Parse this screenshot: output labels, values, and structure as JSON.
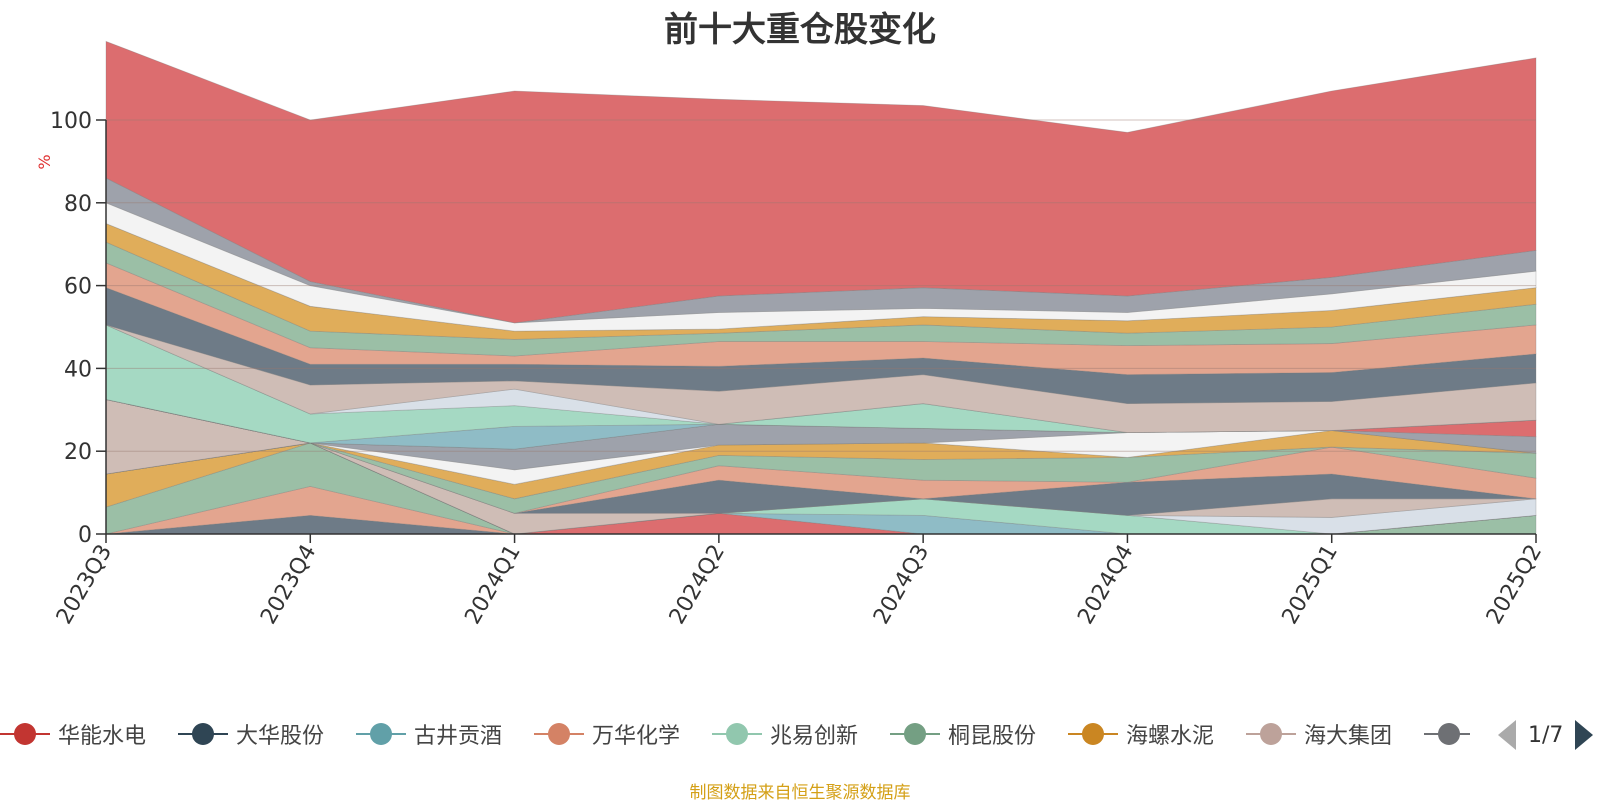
{
  "chart_data": {
    "type": "area",
    "title": "前十大重仓股变化",
    "ylabel": "%",
    "ylim": [
      0,
      100
    ],
    "yticks": [
      "0",
      "20",
      "40",
      "60",
      "80",
      "100"
    ],
    "categories": [
      "2023Q3",
      "2023Q4",
      "2024Q1",
      "2024Q2",
      "2024Q3",
      "2024Q4",
      "2025Q1",
      "2025Q2"
    ],
    "grid": true,
    "stack_colors": [
      "#6e7b87",
      "#e3a58f",
      "#9bbfa6",
      "#e0ad5a",
      "#f3f3f3",
      "#9ea2ab",
      "#dc6d6f",
      "#8fbcc6",
      "#a5d9c3",
      "#d9e0e8",
      "#cfbdb6"
    ],
    "series": [
      {
        "values": [
          0,
          4.5,
          0,
          0,
          0,
          0,
          0,
          0
        ]
      },
      {
        "values": [
          0,
          7,
          0,
          0,
          0,
          0,
          0,
          0
        ]
      },
      {
        "values": [
          6.5,
          10.5,
          0,
          0,
          0,
          0,
          0,
          4.5
        ]
      },
      {
        "values": [
          8,
          0,
          0,
          0,
          0,
          0,
          0,
          0
        ]
      },
      {
        "values": [
          0,
          0,
          0,
          0,
          0,
          0,
          0,
          0
        ]
      },
      {
        "values": [
          0,
          0,
          0,
          0,
          0,
          0,
          0,
          0
        ]
      },
      {
        "values": [
          0,
          0,
          0,
          5,
          0,
          0,
          0,
          0
        ]
      },
      {
        "values": [
          0,
          0,
          0,
          0,
          4.5,
          0,
          0,
          0
        ]
      },
      {
        "values": [
          0,
          0,
          0,
          0,
          4,
          4.5,
          0,
          0
        ]
      },
      {
        "values": [
          0,
          0,
          0,
          0,
          0,
          0,
          4,
          4
        ]
      },
      {
        "values": [
          18,
          0,
          5,
          0,
          0,
          0,
          4.5,
          0
        ]
      },
      {
        "values": [
          0,
          0,
          0,
          8,
          0,
          8,
          6,
          0
        ]
      },
      {
        "values": [
          0,
          0,
          0,
          3.5,
          4.5,
          0,
          6.5,
          5
        ]
      },
      {
        "values": [
          0,
          0,
          3.5,
          2.5,
          5,
          6,
          0,
          6
        ]
      },
      {
        "values": [
          0,
          0,
          3.5,
          2.5,
          4,
          0,
          4,
          0
        ]
      },
      {
        "values": [
          0,
          0,
          3.5,
          0,
          0,
          6,
          0,
          0
        ]
      },
      {
        "values": [
          0,
          0,
          5,
          5,
          3.5,
          0,
          0,
          4
        ]
      },
      {
        "values": [
          0,
          0,
          0,
          0,
          0,
          0,
          0,
          4
        ]
      },
      {
        "values": [
          0,
          0,
          5.5,
          0,
          0,
          0,
          0,
          0
        ]
      },
      {
        "values": [
          18,
          7,
          5,
          0,
          6,
          0,
          0,
          0
        ]
      },
      {
        "values": [
          0,
          0,
          4,
          0,
          0,
          0,
          0,
          0
        ]
      },
      {
        "values": [
          0,
          7,
          2,
          8,
          7,
          7,
          7,
          9
        ]
      },
      {
        "values": [
          9,
          5,
          4,
          6,
          4,
          7,
          7,
          7
        ]
      },
      {
        "values": [
          6,
          4,
          2,
          6,
          4,
          7,
          7,
          7
        ]
      },
      {
        "values": [
          5,
          4,
          4,
          2,
          4,
          3,
          4,
          5
        ]
      },
      {
        "values": [
          4.5,
          6,
          2,
          1,
          2,
          3,
          4,
          4
        ]
      },
      {
        "values": [
          5,
          5,
          2,
          4,
          2,
          2,
          4,
          4
        ]
      },
      {
        "values": [
          6,
          1,
          0,
          4,
          5,
          4,
          4,
          5
        ]
      },
      {
        "values": [
          33,
          39,
          56,
          47.5,
          44,
          39.5,
          45,
          46.5
        ]
      }
    ],
    "colors": [
      "#c23531",
      "#2f4554",
      "#61a0a8",
      "#d48265",
      "#91c7ae",
      "#749f83",
      "#ca8622",
      "#bda29a",
      "#6e7074"
    ]
  },
  "legend": {
    "items": [
      {
        "label": "华能水电",
        "color": "#c23531"
      },
      {
        "label": "大华股份",
        "color": "#2f4554"
      },
      {
        "label": "古井贡酒",
        "color": "#61a0a8"
      },
      {
        "label": "万华化学",
        "color": "#d48265"
      },
      {
        "label": "兆易创新",
        "color": "#91c7ae"
      },
      {
        "label": "桐昆股份",
        "color": "#749f83"
      },
      {
        "label": "海螺水泥",
        "color": "#ca8622"
      },
      {
        "label": "海大集团",
        "color": "#bda29a"
      },
      {
        "label": "",
        "color": "#6e7074"
      }
    ],
    "page": "1/7"
  },
  "source": "制图数据来自恒生聚源数据库"
}
